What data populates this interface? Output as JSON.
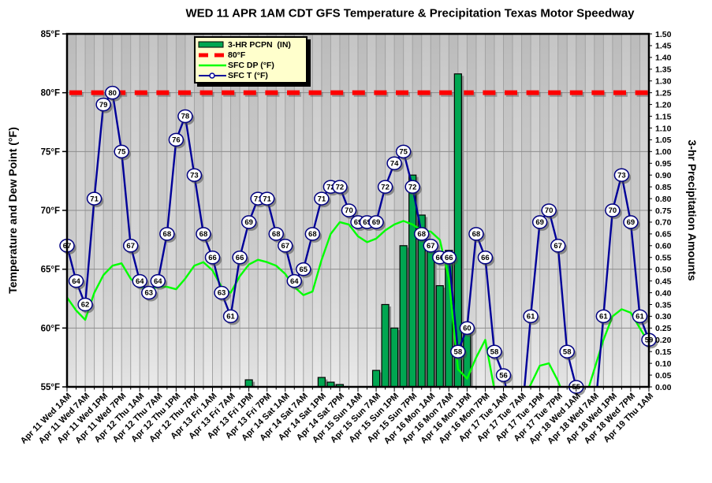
{
  "chart_data": {
    "type": "line+bar",
    "title": "WED 11 APR 1AM CDT GFS Temperature & Precipitation Texas Motor Speedway",
    "left_axis": {
      "label": "Temperature and Dew Point (°F)",
      "min": 55,
      "max": 85,
      "tick_step": 5,
      "tick_suffix": "°F"
    },
    "right_axis": {
      "label": "3-hr Precipitation Amounts",
      "min": 0.0,
      "max": 1.5,
      "tick_step": 0.05
    },
    "points_per_x_label": 2,
    "x_tick_labels": [
      "Apr 11 Wed 1AM",
      "Apr 11 Wed 7AM",
      "Apr 11 Wed 1PM",
      "Apr 11 Wed 7PM",
      "Apr 12 Thu 1AM",
      "Apr 12 Thu 7AM",
      "Apr 12 Thu 1PM",
      "Apr 12 Thu 7PM",
      "Apr 13 Fri 1AM",
      "Apr 13 Fri 7AM",
      "Apr 13 Fri 1PM",
      "Apr 13 Fri 7PM",
      "Apr 14 Sat 1AM",
      "Apr 14 Sat 7AM",
      "Apr 14 Sat 1PM",
      "Apr 14 Sat 7PM",
      "Apr 15 Sun 1AM",
      "Apr 15 Sun 7AM",
      "Apr 15 Sun 1PM",
      "Apr 15 Sun 7PM",
      "Apr 16 Mon 1AM",
      "Apr 16 Mon 7AM",
      "Apr 16 Mon 1PM",
      "Apr 16 Mon 7PM",
      "Apr 17 Tue 1AM",
      "Apr 17 Tue 7AM",
      "Apr 17 Tue 1PM",
      "Apr 17 Tue 7PM",
      "Apr 18 Wed 1AM",
      "Apr 18 Wed 7AM",
      "Apr 18 Wed 1PM",
      "Apr 18 Wed 7PM",
      "Apr 19 Thu 1AM"
    ],
    "reference_line": {
      "label": "80°F",
      "value": 80,
      "color": "#FF0000"
    },
    "series": [
      {
        "id": "pcpn",
        "name": "3-HR PCPN  (IN)",
        "type": "bar",
        "axis": "right",
        "color": "#00A651",
        "values": [
          0,
          0,
          0,
          0,
          0,
          0,
          0,
          0,
          0,
          0,
          0,
          0,
          0,
          0,
          0,
          0,
          0,
          0,
          0,
          0,
          0.03,
          0,
          0,
          0,
          0,
          0,
          0,
          0,
          0.04,
          0.02,
          0.01,
          0,
          0,
          0,
          0.07,
          0.35,
          0.25,
          0.6,
          0.9,
          0.73,
          0.58,
          0.43,
          0.58,
          1.33,
          0.24,
          0,
          0,
          0,
          0,
          0,
          0,
          0,
          0,
          0,
          0,
          0,
          0,
          0,
          0,
          0,
          0,
          0,
          0,
          0,
          0
        ]
      },
      {
        "id": "dp",
        "name": "SFC DP (°F)",
        "type": "line",
        "axis": "left",
        "color": "#00FF00",
        "values": [
          62.6,
          61.5,
          60.7,
          63,
          64.5,
          65.3,
          65.5,
          64.2,
          63.5,
          63.3,
          63.5,
          63.5,
          63.3,
          64.2,
          65.3,
          65.6,
          64.9,
          63.5,
          63,
          64.4,
          65.4,
          65.8,
          65.6,
          65.3,
          64.6,
          63.5,
          62.8,
          63.1,
          65.8,
          68,
          69,
          68.8,
          67.8,
          67.3,
          67.6,
          68.3,
          68.8,
          69.1,
          68.8,
          68.3,
          68.2,
          67.5,
          64.2,
          56.5,
          55.7,
          57.5,
          59,
          54.8,
          53,
          52.5,
          53.5,
          55.2,
          56.8,
          57,
          55.5,
          53.5,
          52.8,
          54,
          56.5,
          59,
          61,
          61.6,
          61.3,
          60,
          58.7
        ]
      },
      {
        "id": "t",
        "name": "SFC T (°F)",
        "type": "line",
        "axis": "left",
        "color": "#000099",
        "marker_labels": true,
        "values": [
          67,
          64,
          62,
          71,
          79,
          80,
          75,
          67,
          64,
          63,
          64,
          68,
          76,
          78,
          73,
          68,
          66,
          63,
          61,
          66,
          69,
          71,
          71,
          68,
          67,
          64,
          65,
          68,
          71,
          72,
          72,
          70,
          69,
          69,
          69,
          72,
          74,
          75,
          72,
          68,
          67,
          66,
          66,
          58,
          60,
          68,
          66,
          58,
          56,
          null,
          null,
          61,
          69,
          70,
          67,
          58,
          55,
          null,
          null,
          61,
          70,
          73,
          69,
          61,
          59
        ]
      }
    ],
    "grid": true,
    "legend_position": "top-inside"
  },
  "legend": {
    "bg_color": "#FFFFCC"
  },
  "colors": {
    "bar_green": "#00A651",
    "dewpoint_green": "#00FF00",
    "temp_navy": "#000099",
    "reference_red": "#FF0000",
    "plot_bg_dark": "#c9c9c9",
    "plot_bg_light": "#d5d5d5"
  }
}
